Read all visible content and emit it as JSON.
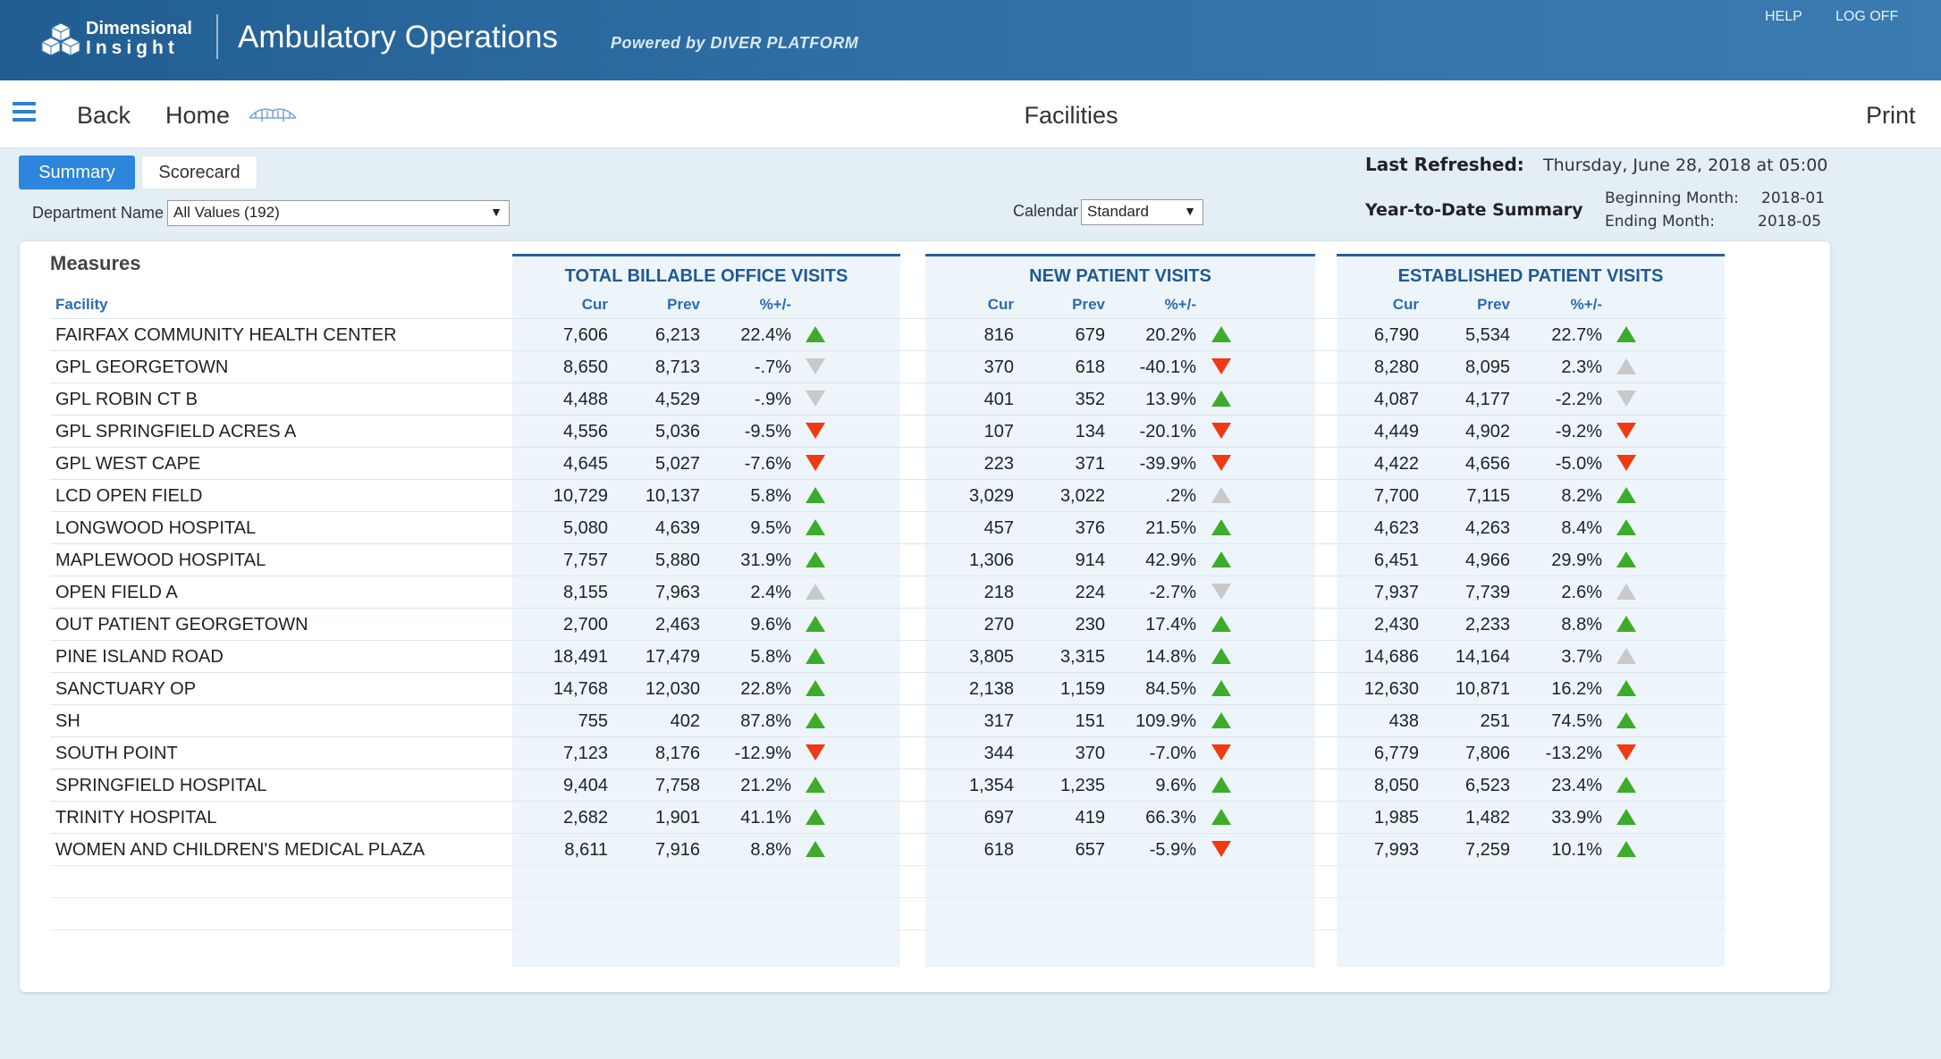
{
  "header": {
    "logo_line1": "Dimensional",
    "logo_line2": "Insight",
    "app_title": "Ambulatory Operations",
    "powered_by": "Powered by DIVER PLATFORM",
    "help": "HELP",
    "log_off": "LOG OFF"
  },
  "nav": {
    "back": "Back",
    "home": "Home",
    "title": "Facilities",
    "print": "Print"
  },
  "tabs": [
    {
      "label": "Summary",
      "active": true
    },
    {
      "label": "Scorecard",
      "active": false
    }
  ],
  "filters": {
    "department_label": "Department Name",
    "department_value": "All Values (192)",
    "calendar_label": "Calendar",
    "calendar_value": "Standard"
  },
  "info": {
    "last_refreshed_label": "Last Refreshed:",
    "last_refreshed_value": "Thursday, June 28, 2018 at 05:00",
    "ytd_label": "Year-to-Date Summary",
    "beginning_month_label": "Beginning Month:",
    "beginning_month_value": "2018-01",
    "ending_month_label": "Ending Month:",
    "ending_month_value": "2018-05"
  },
  "table": {
    "measures_label": "Measures",
    "facility_header": "Facility",
    "groups": [
      {
        "title": "TOTAL BILLABLE OFFICE VISITS",
        "cols": [
          "Cur",
          "Prev",
          "%+/-"
        ]
      },
      {
        "title": "NEW PATIENT VISITS",
        "cols": [
          "Cur",
          "Prev",
          "%+/-"
        ]
      },
      {
        "title": "ESTABLISHED PATIENT VISITS",
        "cols": [
          "Cur",
          "Prev",
          "%+/-"
        ]
      }
    ],
    "colors": {
      "up": "#3fab2b",
      "down": "#ef3a12",
      "neutral": "#c9c9c9"
    },
    "rows": [
      {
        "facility": "FAIRFAX COMMUNITY HEALTH CENTER",
        "g": [
          [
            "7,606",
            "6,213",
            "22.4%",
            "up"
          ],
          [
            "816",
            "679",
            "20.2%",
            "up"
          ],
          [
            "6,790",
            "5,534",
            "22.7%",
            "up"
          ]
        ]
      },
      {
        "facility": "GPL GEORGETOWN",
        "g": [
          [
            "8,650",
            "8,713",
            "-.7%",
            "neutral-down"
          ],
          [
            "370",
            "618",
            "-40.1%",
            "down"
          ],
          [
            "8,280",
            "8,095",
            "2.3%",
            "neutral-up"
          ]
        ]
      },
      {
        "facility": "GPL ROBIN CT B",
        "g": [
          [
            "4,488",
            "4,529",
            "-.9%",
            "neutral-down"
          ],
          [
            "401",
            "352",
            "13.9%",
            "up"
          ],
          [
            "4,087",
            "4,177",
            "-2.2%",
            "neutral-down"
          ]
        ]
      },
      {
        "facility": "GPL SPRINGFIELD ACRES A",
        "g": [
          [
            "4,556",
            "5,036",
            "-9.5%",
            "down"
          ],
          [
            "107",
            "134",
            "-20.1%",
            "down"
          ],
          [
            "4,449",
            "4,902",
            "-9.2%",
            "down"
          ]
        ]
      },
      {
        "facility": "GPL WEST CAPE",
        "g": [
          [
            "4,645",
            "5,027",
            "-7.6%",
            "down"
          ],
          [
            "223",
            "371",
            "-39.9%",
            "down"
          ],
          [
            "4,422",
            "4,656",
            "-5.0%",
            "down"
          ]
        ]
      },
      {
        "facility": "LCD OPEN FIELD",
        "g": [
          [
            "10,729",
            "10,137",
            "5.8%",
            "up"
          ],
          [
            "3,029",
            "3,022",
            ".2%",
            "neutral-up"
          ],
          [
            "7,700",
            "7,115",
            "8.2%",
            "up"
          ]
        ]
      },
      {
        "facility": "LONGWOOD HOSPITAL",
        "g": [
          [
            "5,080",
            "4,639",
            "9.5%",
            "up"
          ],
          [
            "457",
            "376",
            "21.5%",
            "up"
          ],
          [
            "4,623",
            "4,263",
            "8.4%",
            "up"
          ]
        ]
      },
      {
        "facility": "MAPLEWOOD HOSPITAL",
        "g": [
          [
            "7,757",
            "5,880",
            "31.9%",
            "up"
          ],
          [
            "1,306",
            "914",
            "42.9%",
            "up"
          ],
          [
            "6,451",
            "4,966",
            "29.9%",
            "up"
          ]
        ]
      },
      {
        "facility": "OPEN FIELD A",
        "g": [
          [
            "8,155",
            "7,963",
            "2.4%",
            "neutral-up"
          ],
          [
            "218",
            "224",
            "-2.7%",
            "neutral-down"
          ],
          [
            "7,937",
            "7,739",
            "2.6%",
            "neutral-up"
          ]
        ]
      },
      {
        "facility": "OUT PATIENT GEORGETOWN",
        "g": [
          [
            "2,700",
            "2,463",
            "9.6%",
            "up"
          ],
          [
            "270",
            "230",
            "17.4%",
            "up"
          ],
          [
            "2,430",
            "2,233",
            "8.8%",
            "up"
          ]
        ]
      },
      {
        "facility": "PINE ISLAND ROAD",
        "g": [
          [
            "18,491",
            "17,479",
            "5.8%",
            "up"
          ],
          [
            "3,805",
            "3,315",
            "14.8%",
            "up"
          ],
          [
            "14,686",
            "14,164",
            "3.7%",
            "neutral-up"
          ]
        ]
      },
      {
        "facility": "SANCTUARY OP",
        "g": [
          [
            "14,768",
            "12,030",
            "22.8%",
            "up"
          ],
          [
            "2,138",
            "1,159",
            "84.5%",
            "up"
          ],
          [
            "12,630",
            "10,871",
            "16.2%",
            "up"
          ]
        ]
      },
      {
        "facility": "SH",
        "g": [
          [
            "755",
            "402",
            "87.8%",
            "up"
          ],
          [
            "317",
            "151",
            "109.9%",
            "up"
          ],
          [
            "438",
            "251",
            "74.5%",
            "up"
          ]
        ]
      },
      {
        "facility": "SOUTH POINT",
        "g": [
          [
            "7,123",
            "8,176",
            "-12.9%",
            "down"
          ],
          [
            "344",
            "370",
            "-7.0%",
            "down"
          ],
          [
            "6,779",
            "7,806",
            "-13.2%",
            "down"
          ]
        ]
      },
      {
        "facility": "SPRINGFIELD HOSPITAL",
        "g": [
          [
            "9,404",
            "7,758",
            "21.2%",
            "up"
          ],
          [
            "1,354",
            "1,235",
            "9.6%",
            "up"
          ],
          [
            "8,050",
            "6,523",
            "23.4%",
            "up"
          ]
        ]
      },
      {
        "facility": "TRINITY HOSPITAL",
        "g": [
          [
            "2,682",
            "1,901",
            "41.1%",
            "up"
          ],
          [
            "697",
            "419",
            "66.3%",
            "up"
          ],
          [
            "1,985",
            "1,482",
            "33.9%",
            "up"
          ]
        ]
      },
      {
        "facility": "WOMEN AND CHILDREN'S MEDICAL PLAZA",
        "g": [
          [
            "8,611",
            "7,916",
            "8.8%",
            "up"
          ],
          [
            "618",
            "657",
            "-5.9%",
            "down"
          ],
          [
            "7,993",
            "7,259",
            "10.1%",
            "up"
          ]
        ]
      }
    ]
  }
}
